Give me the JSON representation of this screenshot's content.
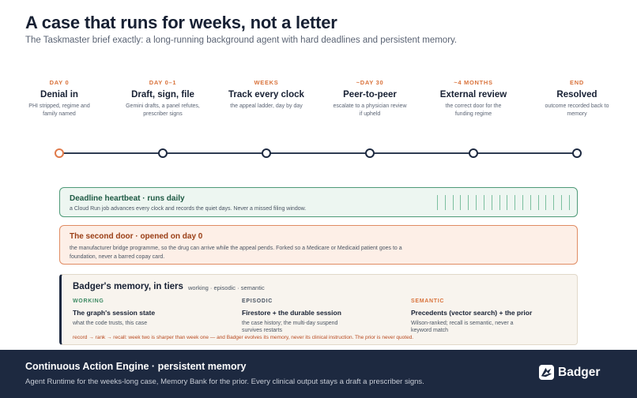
{
  "header": {
    "title": "A case that runs for weeks, not a letter",
    "subtitle": "The Taskmaster brief exactly: a long-running background agent with hard deadlines and persistent memory."
  },
  "timeline": [
    {
      "tag": "DAY 0",
      "title": "Denial in",
      "desc": "PHI stripped, regime and family named"
    },
    {
      "tag": "DAY 0–1",
      "title": "Draft, sign, file",
      "desc": "Gemini drafts, a panel refutes, prescriber signs"
    },
    {
      "tag": "WEEKS",
      "title": "Track every clock",
      "desc": "the appeal ladder, day by day"
    },
    {
      "tag": "~DAY 30",
      "title": "Peer-to-peer",
      "desc": "escalate to a physician review if upheld"
    },
    {
      "tag": "~4 MONTHS",
      "title": "External review",
      "desc": "the correct door for the funding regime"
    },
    {
      "tag": "END",
      "title": "Resolved",
      "desc": "outcome recorded back to memory"
    }
  ],
  "heartbeat": {
    "title": "Deadline heartbeat · runs daily",
    "desc": "a Cloud Run job advances every clock and records the quiet days. Never a missed filing window."
  },
  "second_door": {
    "title": "The second door · opened on day 0",
    "desc": "the manufacturer bridge programme, so the drug can arrive while the appeal pends. Forked so a Medicare or Medicaid patient goes to a foundation, never a barred copay card."
  },
  "memory": {
    "title": "Badger's memory, in tiers",
    "tiers": "working · episodic · semantic",
    "columns": [
      {
        "tag": "WORKING",
        "color": "#3d8a63",
        "title": "The graph's session state",
        "desc": "what the code trusts, this case"
      },
      {
        "tag": "EPISODIC",
        "color": "#4a5563",
        "title": "Firestore + the durable session",
        "desc": "the case history; the multi-day suspend survives restarts"
      },
      {
        "tag": "SEMANTIC",
        "color": "#d9733c",
        "title": "Precedents (vector search) + the prior",
        "desc": "Wilson-ranked; recall is semantic, never a keyword match"
      }
    ],
    "footnote": "record → rank → recall: week two is sharper than week one — and Badger evolves its memory, never its clinical instruction. The prior is never quoted."
  },
  "footer": {
    "title": "Continuous Action Engine · persistent memory",
    "desc": "Agent Runtime for the weeks-long case, Memory Bank for the prior. Every clinical output stays a draft a prescriber signs.",
    "brand": "Badger",
    "brand_icon": "badger-logo-icon"
  },
  "colors": {
    "accent_orange": "#d9733c",
    "green": "#4f9a78",
    "navy": "#1d2940"
  }
}
